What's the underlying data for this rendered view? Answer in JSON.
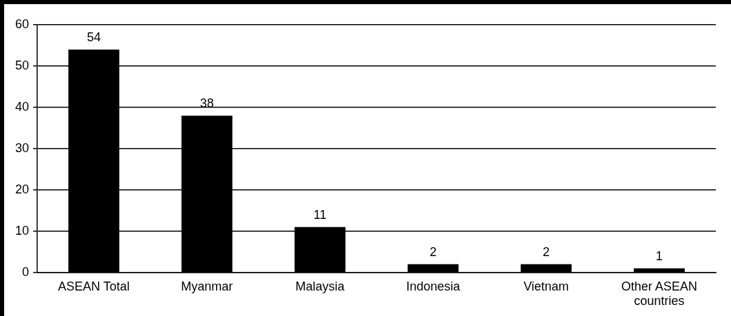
{
  "chart_data": {
    "type": "bar",
    "categories": [
      "ASEAN Total",
      "Myanmar",
      "Malaysia",
      "Indonesia",
      "Vietnam",
      "Other ASEAN countries"
    ],
    "values": [
      54,
      38,
      11,
      2,
      2,
      1
    ],
    "color": "#000000",
    "ylim": [
      0,
      60
    ],
    "yticks": [
      0,
      10,
      20,
      30,
      40,
      50,
      60
    ],
    "grid": "y",
    "data_labels": true
  }
}
